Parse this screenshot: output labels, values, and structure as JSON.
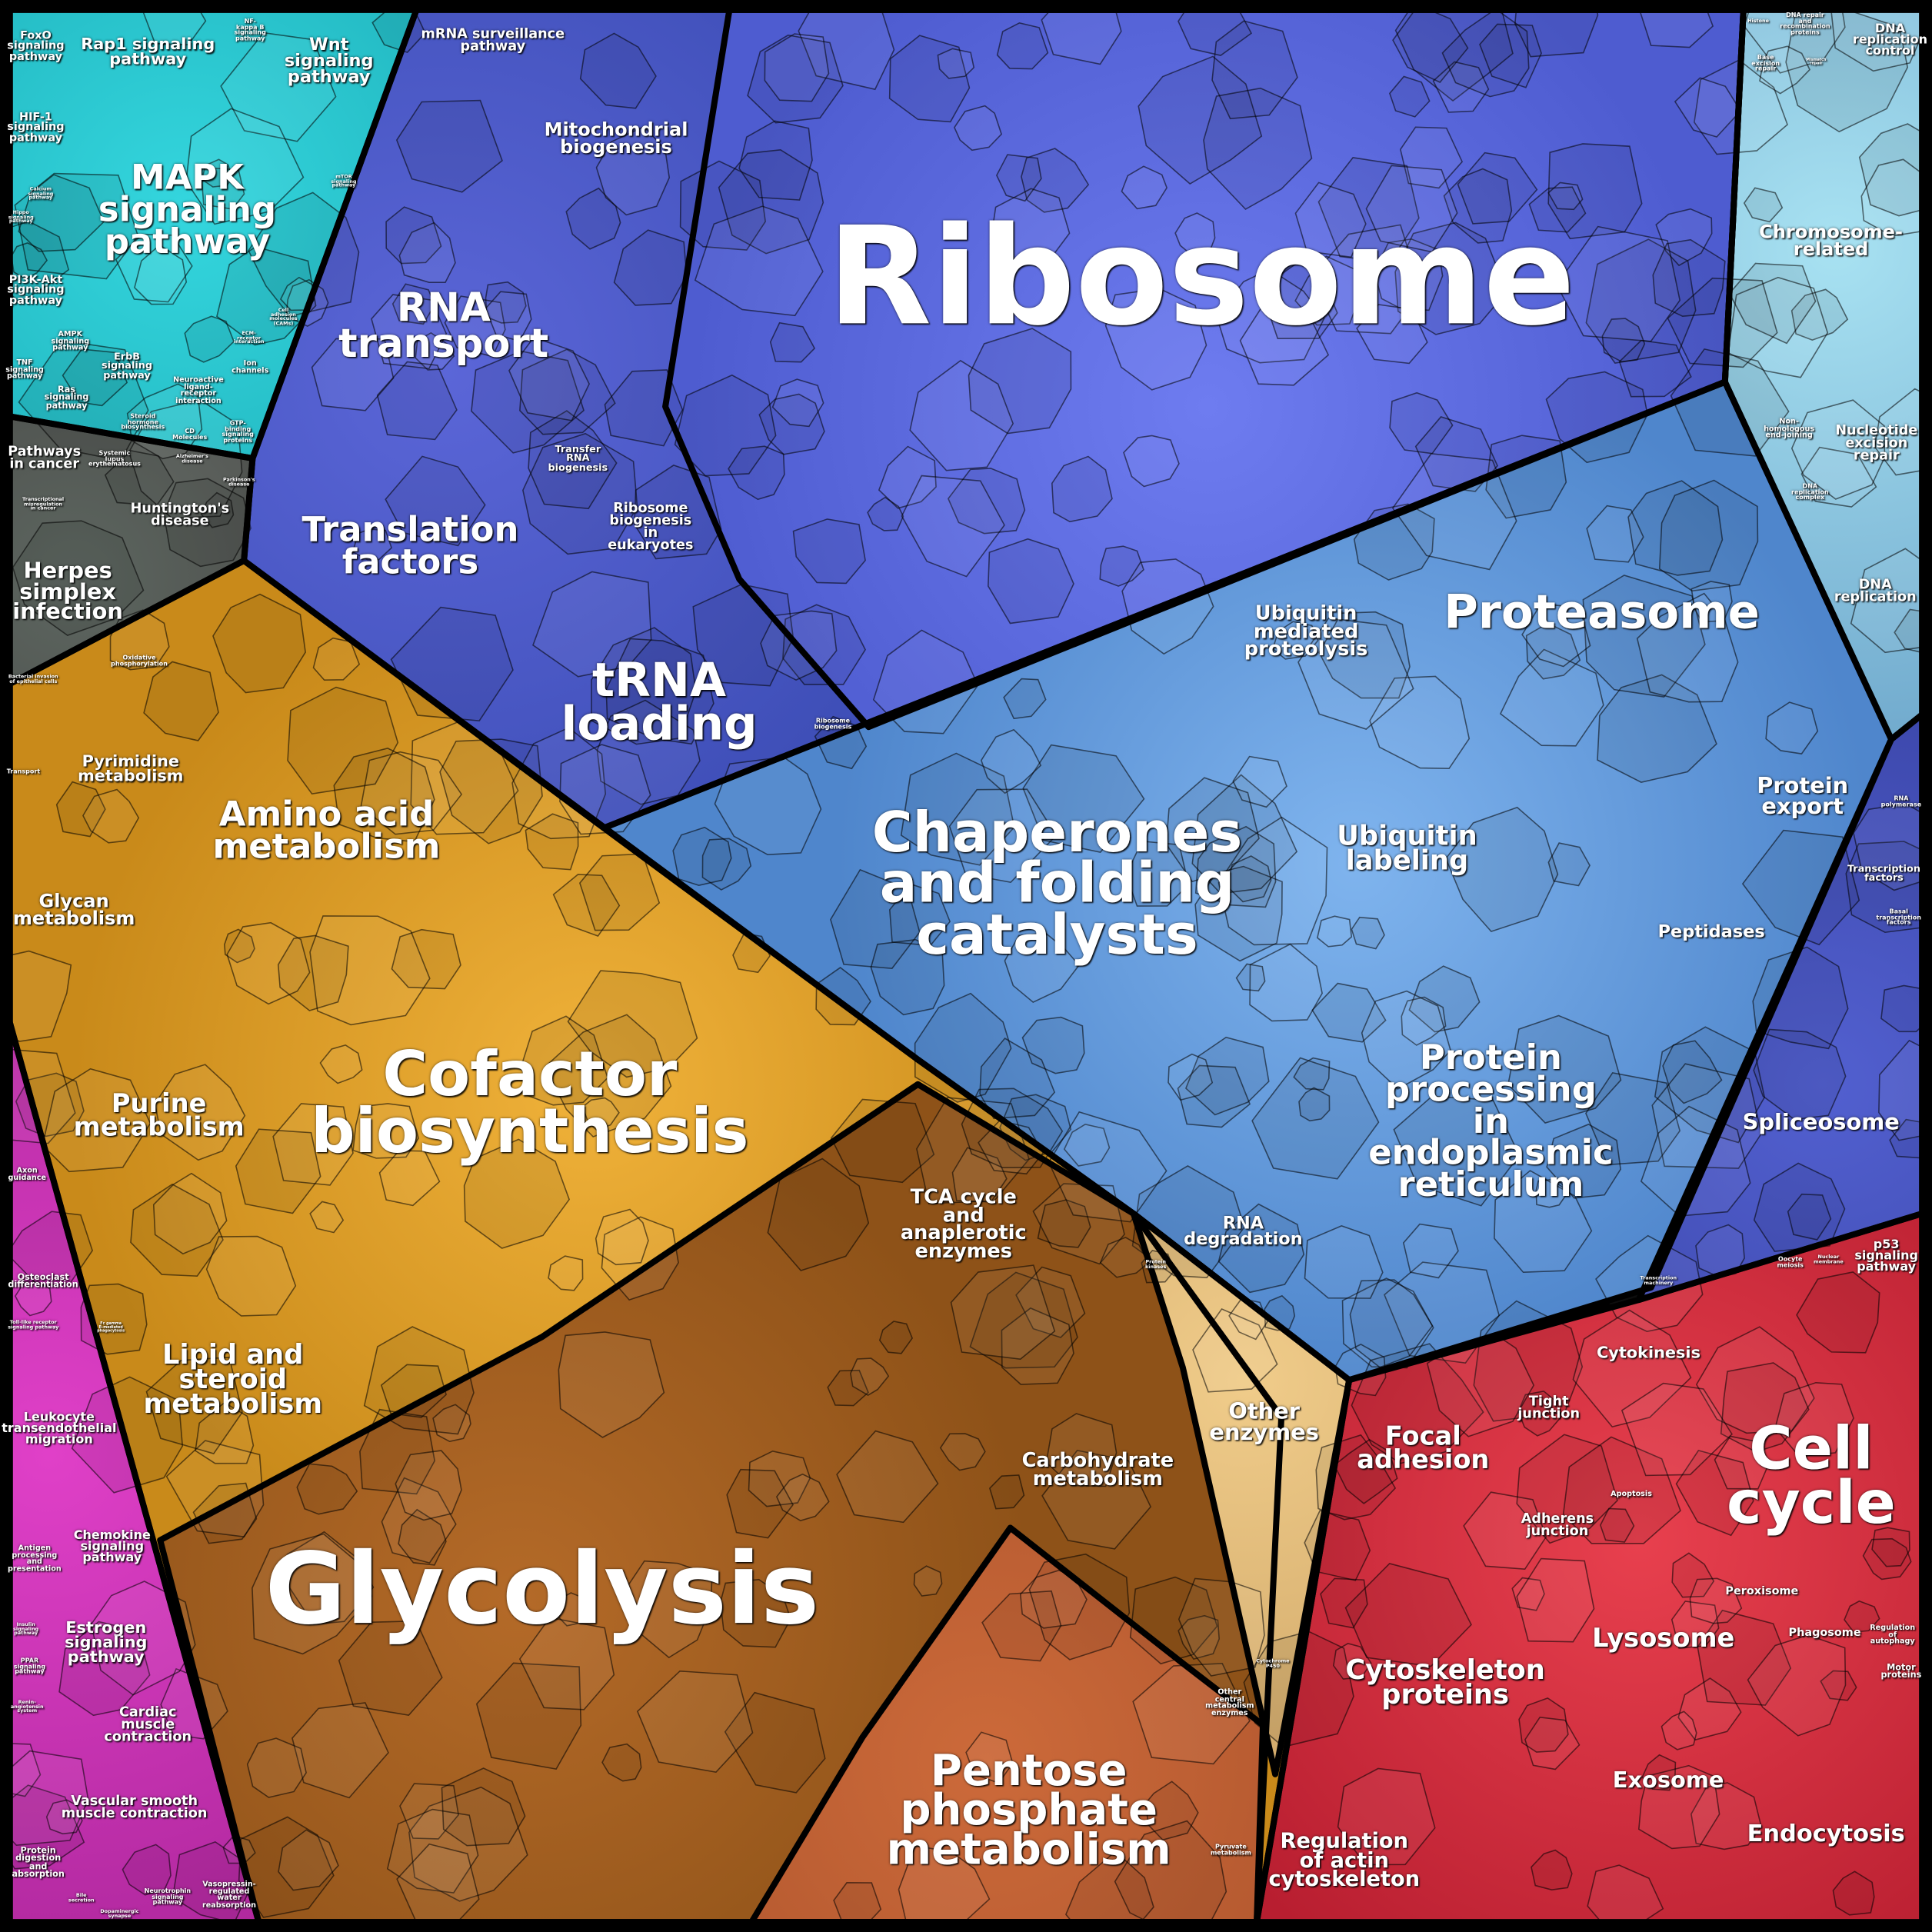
{
  "regions": {
    "signaling": {
      "color": "#18a6b0",
      "light": "#34d6de"
    },
    "disease": {
      "color": "#3b3636",
      "light": "#5d6660"
    },
    "genetic_info": {
      "color": "#3f4fb8",
      "light": "#5b66d8"
    },
    "ribosome": {
      "color": "#4e5cd0",
      "light": "#6e7cf0"
    },
    "folding": {
      "color": "#4f86cc",
      "light": "#7fb4ee"
    },
    "chromosome": {
      "color": "#6fa8cc",
      "light": "#a8e2f2"
    },
    "spliceosome": {
      "color": "#3640a0",
      "light": "#5260d0"
    },
    "metabolism": {
      "color": "#c98a1a",
      "light": "#f0b23a"
    },
    "glycolysis": {
      "color": "#8e5218",
      "light": "#b46a28"
    },
    "pentose": {
      "color": "#a8502a",
      "light": "#cc6a3a"
    },
    "other_enzymes": {
      "color": "#c9a062",
      "light": "#f0cc8a"
    },
    "cellular_organismal": {
      "color": "#b0289e",
      "light": "#e040c8"
    },
    "cellular_processes": {
      "color": "#b81e30",
      "light": "#e8404e"
    }
  },
  "labels": [
    "Ribosome",
    "MAPK\nsignaling\npathway",
    "Rap1 signaling\npathway",
    "Wnt\nsignaling\npathway",
    "FoxO\nsignaling\npathway",
    "HIF-1\nsignaling\npathway",
    "PI3K-Akt\nsignaling\npathway",
    "AMPK\nsignaling\npathway",
    "TNF\nsignaling\npathway",
    "Ras\nsignaling\npathway",
    "ErbB\nsignaling\npathway",
    "Neuroactive\nligand-\nreceptor\ninteraction",
    "Steroid\nhormone\nbiosynthesis",
    "CD\nMolecules",
    "GTP-\nbinding\nsignaling\nproteins",
    "Ion\nchannels",
    "NF-\nkappa B\nsignaling\npathway",
    "Calcium\nsignaling\npathway",
    "Hippo\nsignaling\npathway",
    "Cell\nadhesion\nmolecules\n(CAMs)",
    "ECM-\nreceptor\ninteraction",
    "mTOR\nsignaling\npathway",
    "mRNA surveillance\npathway",
    "Mitochondrial\nbiogenesis",
    "RNA\ntransport",
    "Translation\nfactors",
    "Transfer\nRNA\nbiogenesis",
    "Ribosome\nbiogenesis\nin\neukaryotes",
    "tRNA\nloading",
    "Ribosome\nbiogenesis",
    "Pathways\nin cancer",
    "Systemic\nlupus\nerythematosus",
    "Alzheimer's\ndisease",
    "Huntington's\ndisease",
    "Parkinson's\ndisease",
    "Transcriptional\nmisregulation\nin cancer",
    "Herpes\nsimplex\ninfection",
    "Oxidative\nphosphorylation",
    "Bacterial invasion\nof epithelial cells",
    "Transport",
    "Pyrimidine\nmetabolism",
    "Amino acid\nmetabolism",
    "Glycan\nmetabolism",
    "Cofactor\nbiosynthesis",
    "Purine\nmetabolism",
    "Lipid and\nsteroid\nmetabolism",
    "TCA cycle\nand\nanaplerotic\nenzymes",
    "Carbohydrate\nmetabolism",
    "Glycolysis",
    "Pentose\nphosphate\nmetabolism",
    "Other\nenzymes",
    "Other\ncentral\nmetabolism\nenzymes",
    "Pyruvate\nmetabolism",
    "Protein\nkinases",
    "Cytochrome\nP450",
    "Axon\nguidance",
    "Osteoclast\ndifferentiation",
    "Toll-like receptor\nsignaling pathway",
    "Fc gamma\nR-mediated\nphagocytosis",
    "Leukocyte\ntransendothelial\nmigration",
    "Antigen\nprocessing\nand\npresentation",
    "Chemokine\nsignaling\npathway",
    "Insulin\nsignaling\npathway",
    "PPAR\nsignaling\npathway",
    "Renin-\nangiotensin\nsystem",
    "Estrogen\nsignaling\npathway",
    "Cardiac\nmuscle\ncontraction",
    "Vascular smooth\nmuscle contraction",
    "Protein\ndigestion\nand\nabsorption",
    "Bile\nsecretion",
    "Dopaminergic\nsynapse",
    "Neurotrophin\nsignaling\npathway",
    "Vasopressin-\nregulated\nwater\nreabsorption",
    "Chromosome-\nrelated",
    "DNA\nreplication\ncontrol",
    "DNA repair\nand\nrecombination\nproteins",
    "Histone",
    "Base\nexcision\nrepair",
    "Mismatch\nrepair",
    "Non-\nhomologous\nend-joining",
    "Nucleotide\nexcision\nrepair",
    "DNA\nreplication\ncomplex",
    "DNA\nreplication",
    "Proteasome",
    "Ubiquitin\nmediated\nproteolysis",
    "Chaperones\nand folding\ncatalysts",
    "Ubiquitin\nlabeling",
    "Protein\nexport",
    "Peptidases",
    "RNA\npolymerase",
    "Transcription\nfactors",
    "Basal\ntranscription\nfactors",
    "Spliceosome",
    "Protein\nprocessing\nin\nendoplasmic\nreticulum",
    "RNA\ndegradation",
    "Transcription\nmachinery",
    "p53\nsignaling\npathway",
    "Oocyte\nmeiosis",
    "Nuclear\nmembrane",
    "Cytokinesis",
    "Cell\ncycle",
    "Tight\njunction",
    "Apoptosis",
    "Focal\nadhesion",
    "Adherens\njunction",
    "Peroxisome",
    "Lysosome",
    "Phagosome",
    "Regulation\nof\nautophagy",
    "Motor\nproteins",
    "Cytoskeleton\nproteins",
    "Exosome",
    "Endocytosis",
    "Regulation\nof actin\ncytoskeleton"
  ]
}
